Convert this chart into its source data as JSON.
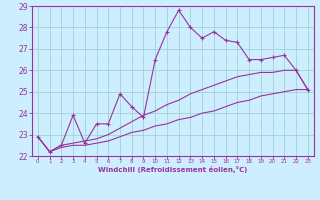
{
  "xlabel": "Windchill (Refroidissement éolien,°C)",
  "bg_color": "#cceeff",
  "grid_color": "#99cccc",
  "line_color": "#993399",
  "xlim": [
    -0.5,
    23.5
  ],
  "ylim": [
    22,
    29
  ],
  "xticks": [
    0,
    1,
    2,
    3,
    4,
    5,
    6,
    7,
    8,
    9,
    10,
    11,
    12,
    13,
    14,
    15,
    16,
    17,
    18,
    19,
    20,
    21,
    22,
    23
  ],
  "yticks": [
    22,
    23,
    24,
    25,
    26,
    27,
    28,
    29
  ],
  "series1_x": [
    0,
    1,
    2,
    3,
    4,
    5,
    6,
    7,
    8,
    9,
    10,
    11,
    12,
    13,
    14,
    15,
    16,
    17,
    18,
    19,
    20,
    21,
    22,
    23
  ],
  "series1_y": [
    22.9,
    22.2,
    22.5,
    23.9,
    22.6,
    23.5,
    23.5,
    24.9,
    24.3,
    23.8,
    26.5,
    27.8,
    28.8,
    28.0,
    27.5,
    27.8,
    27.4,
    27.3,
    26.5,
    26.5,
    26.6,
    26.7,
    26.0,
    25.1
  ],
  "series2_x": [
    0,
    1,
    2,
    3,
    4,
    5,
    6,
    7,
    8,
    9,
    10,
    11,
    12,
    13,
    14,
    15,
    16,
    17,
    18,
    19,
    20,
    21,
    22,
    23
  ],
  "series2_y": [
    22.9,
    22.2,
    22.4,
    22.5,
    22.5,
    22.6,
    22.7,
    22.9,
    23.1,
    23.2,
    23.4,
    23.5,
    23.7,
    23.8,
    24.0,
    24.1,
    24.3,
    24.5,
    24.6,
    24.8,
    24.9,
    25.0,
    25.1,
    25.1
  ],
  "series3_x": [
    0,
    1,
    2,
    3,
    4,
    5,
    6,
    7,
    8,
    9,
    10,
    11,
    12,
    13,
    14,
    15,
    16,
    17,
    18,
    19,
    20,
    21,
    22,
    23
  ],
  "series3_y": [
    22.9,
    22.2,
    22.5,
    22.6,
    22.7,
    22.8,
    23.0,
    23.3,
    23.6,
    23.9,
    24.1,
    24.4,
    24.6,
    24.9,
    25.1,
    25.3,
    25.5,
    25.7,
    25.8,
    25.9,
    25.9,
    26.0,
    26.0,
    25.1
  ]
}
